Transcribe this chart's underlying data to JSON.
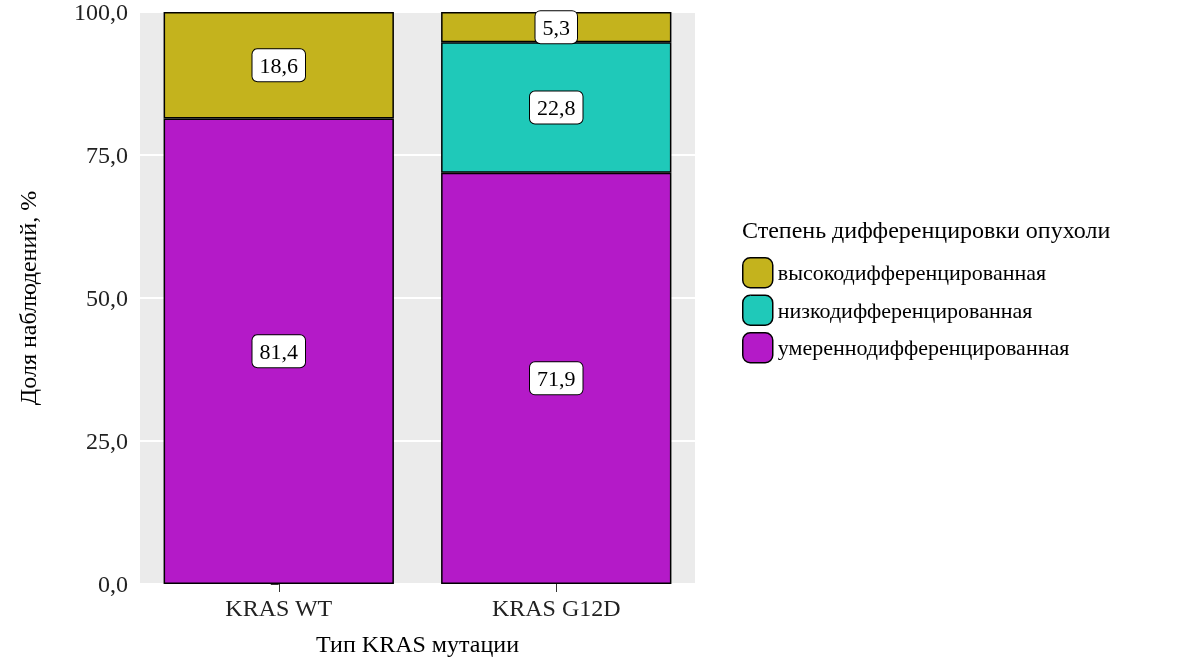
{
  "chart_data": {
    "type": "bar",
    "stacked": true,
    "xlabel": "Тип KRAS мутации",
    "ylabel": "Доля наблюдений, %",
    "legend_title": "Степень дифференцировки опухоли",
    "categories": [
      "KRAS WT",
      "KRAS G12D"
    ],
    "series": [
      {
        "name": "умереннодифференцированная",
        "color": "#b41ac8",
        "values": [
          81.4,
          71.9
        ],
        "value_labels": [
          "81,4",
          "71,9"
        ]
      },
      {
        "name": "низкодифференцированная",
        "color": "#1fc9b9",
        "values": [
          null,
          22.8
        ],
        "value_labels": [
          null,
          "22,8"
        ]
      },
      {
        "name": "высокодифференцированная",
        "color": "#c4b31d",
        "values": [
          18.6,
          5.3
        ],
        "value_labels": [
          "18,6",
          "5,3"
        ]
      }
    ],
    "ylim": [
      0,
      100
    ],
    "yticks": [
      {
        "value": 0,
        "label": "0,0"
      },
      {
        "value": 25,
        "label": "25,0"
      },
      {
        "value": 50,
        "label": "50,0"
      },
      {
        "value": 75,
        "label": "75,0"
      },
      {
        "value": 100,
        "label": "100,0"
      }
    ],
    "grid": true,
    "legend": "right"
  }
}
